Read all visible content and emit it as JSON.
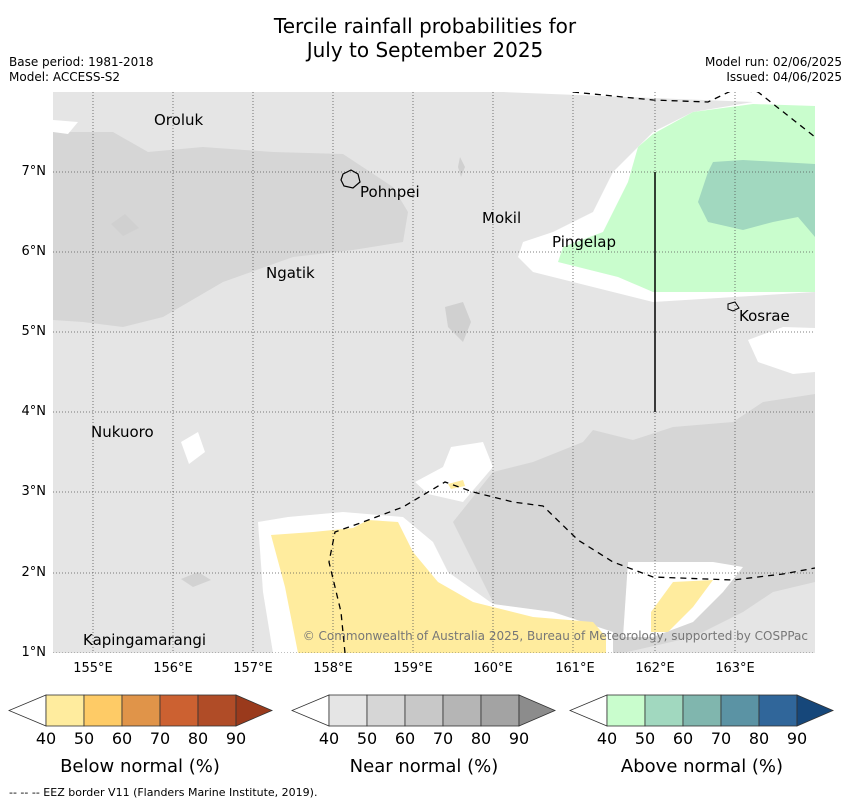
{
  "title_line1": "Tercile rainfall probabilities for",
  "title_line2": "July to September 2025",
  "base_period": "Base period: 1981-2018",
  "model": "Model: ACCESS-S2",
  "model_run": "Model run: 02/06/2025",
  "issued": "Issued: 04/06/2025",
  "lat_labels": [
    "7°N",
    "6°N",
    "5°N",
    "4°N",
    "3°N",
    "2°N",
    "1°N"
  ],
  "lon_labels": [
    "155°E",
    "156°E",
    "157°E",
    "158°E",
    "159°E",
    "160°E",
    "161°E",
    "162°E",
    "163°E"
  ],
  "islands": {
    "oroluk": "Oroluk",
    "pohnpei": "Pohnpei",
    "mokil": "Mokil",
    "pingelap": "Pingelap",
    "ngatik": "Ngatik",
    "kosrae": "Kosrae",
    "nukuoro": "Nukuoro",
    "kapingamarangi": "Kapingamarangi"
  },
  "copyright": "© Commonwealth of Australia 2025, Bureau of Meteorology, supported by COSPPac",
  "colorbars": [
    {
      "label": "Below normal (%)",
      "ticks": [
        "40",
        "50",
        "60",
        "70",
        "80",
        "90"
      ],
      "colors": [
        "#ffffff",
        "#ffec9e",
        "#fecb66",
        "#e09449",
        "#cc6131",
        "#b04c27",
        "#9a3a1c"
      ]
    },
    {
      "label": "Near normal (%)",
      "ticks": [
        "40",
        "50",
        "60",
        "70",
        "80",
        "90"
      ],
      "colors": [
        "#ffffff",
        "#e5e5e5",
        "#d6d6d6",
        "#c8c8c8",
        "#b5b5b5",
        "#a3a3a3",
        "#8c8c8c"
      ]
    },
    {
      "label": "Above normal (%)",
      "ticks": [
        "40",
        "50",
        "60",
        "70",
        "80",
        "90"
      ],
      "colors": [
        "#ffffff",
        "#c9fdcd",
        "#a1d8bf",
        "#80b6ae",
        "#5b93a4",
        "#30669a",
        "#16477a"
      ]
    }
  ],
  "eez_note": "-- -- -- EEZ border V11 (Flanders Marine Institute, 2019)."
}
